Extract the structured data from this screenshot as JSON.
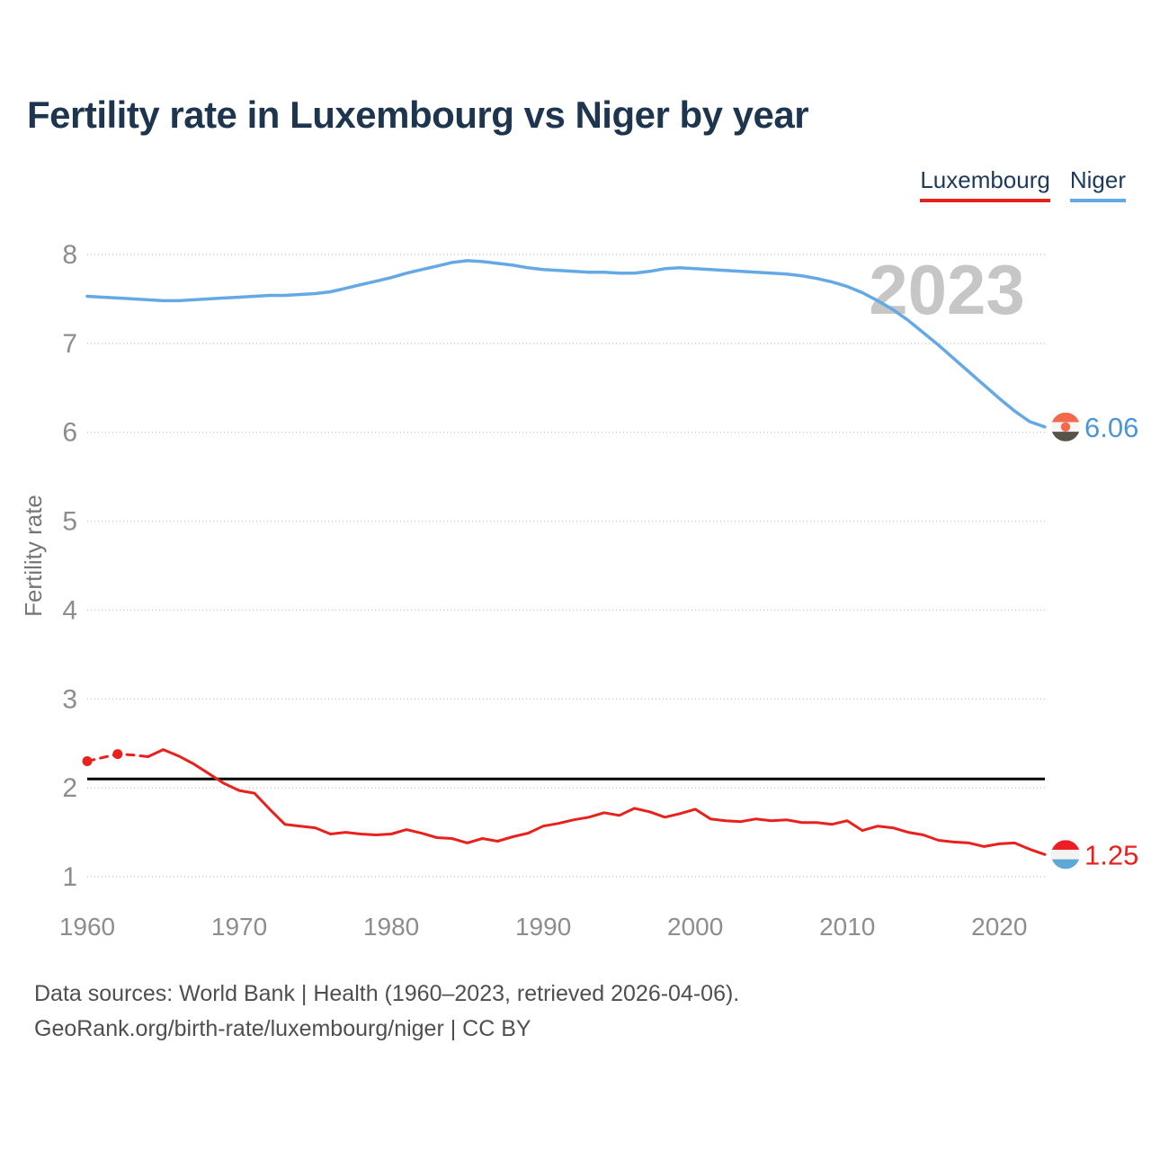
{
  "header": {
    "title": "Fertility rate in Luxembourg vs Niger by year"
  },
  "legend": {
    "items": [
      {
        "label": "Luxembourg",
        "color": "#e8211d"
      },
      {
        "label": "Niger",
        "color": "#64a9e6"
      }
    ]
  },
  "watermark": "2023",
  "footer": {
    "line1": "Data sources: World Bank | Health (1960–2023, retrieved 2026-04-06).",
    "line2": "GeoRank.org/birth-rate/luxembourg/niger | CC BY"
  },
  "chart_data": {
    "type": "line",
    "title": "Fertility rate in Luxembourg vs Niger by year",
    "xlabel": "",
    "ylabel": "Fertility rate",
    "xlim": [
      1960,
      2023
    ],
    "ylim": [
      1,
      8
    ],
    "x_ticks": [
      1960,
      1970,
      1980,
      1990,
      2000,
      2010,
      2020
    ],
    "y_ticks": [
      1,
      2,
      3,
      4,
      5,
      6,
      7,
      8
    ],
    "grid": true,
    "legend_position": "top-right",
    "reference_line": {
      "value": 2.1,
      "color": "#000000"
    },
    "x": [
      1960,
      1961,
      1962,
      1963,
      1964,
      1965,
      1966,
      1967,
      1968,
      1969,
      1970,
      1971,
      1972,
      1973,
      1974,
      1975,
      1976,
      1977,
      1978,
      1979,
      1980,
      1981,
      1982,
      1983,
      1984,
      1985,
      1986,
      1987,
      1988,
      1989,
      1990,
      1991,
      1992,
      1993,
      1994,
      1995,
      1996,
      1997,
      1998,
      1999,
      2000,
      2001,
      2002,
      2003,
      2004,
      2005,
      2006,
      2007,
      2008,
      2009,
      2010,
      2011,
      2012,
      2013,
      2014,
      2015,
      2016,
      2017,
      2018,
      2019,
      2020,
      2021,
      2022,
      2023
    ],
    "series": [
      {
        "name": "Niger",
        "color": "#64a9e6",
        "end_label": "6.06",
        "end_label_color": "#4b96db",
        "flag": {
          "stripes": [
            "#f2694c",
            "#f7f7f5",
            "#585349"
          ],
          "dot": "#f2694c"
        },
        "values": [
          7.53,
          7.52,
          7.51,
          7.5,
          7.49,
          7.48,
          7.48,
          7.49,
          7.5,
          7.51,
          7.52,
          7.53,
          7.54,
          7.54,
          7.55,
          7.56,
          7.58,
          7.62,
          7.66,
          7.7,
          7.74,
          7.79,
          7.83,
          7.87,
          7.91,
          7.93,
          7.92,
          7.9,
          7.88,
          7.85,
          7.83,
          7.82,
          7.81,
          7.8,
          7.8,
          7.79,
          7.79,
          7.81,
          7.84,
          7.85,
          7.84,
          7.83,
          7.82,
          7.81,
          7.8,
          7.79,
          7.78,
          7.76,
          7.73,
          7.69,
          7.64,
          7.57,
          7.48,
          7.38,
          7.26,
          7.12,
          6.98,
          6.83,
          6.68,
          6.53,
          6.38,
          6.24,
          6.12,
          6.06
        ]
      },
      {
        "name": "Luxembourg",
        "color": "#e8211d",
        "end_label": "1.25",
        "end_label_color": "#e8211d",
        "dashed_until_year": 1964,
        "marker_years": [
          1960,
          1962
        ],
        "flag": {
          "stripes": [
            "#ee1c25",
            "#f5f3f0",
            "#5ea8d8"
          ]
        },
        "values": [
          2.3,
          2.34,
          2.38,
          2.37,
          2.35,
          2.43,
          2.36,
          2.27,
          2.16,
          2.05,
          1.97,
          1.94,
          1.76,
          1.59,
          1.57,
          1.55,
          1.48,
          1.5,
          1.48,
          1.47,
          1.48,
          1.53,
          1.49,
          1.44,
          1.43,
          1.38,
          1.43,
          1.4,
          1.45,
          1.49,
          1.57,
          1.6,
          1.64,
          1.67,
          1.72,
          1.69,
          1.77,
          1.73,
          1.67,
          1.71,
          1.76,
          1.65,
          1.63,
          1.62,
          1.65,
          1.63,
          1.64,
          1.61,
          1.61,
          1.59,
          1.63,
          1.52,
          1.57,
          1.55,
          1.5,
          1.47,
          1.41,
          1.39,
          1.38,
          1.34,
          1.37,
          1.38,
          1.31,
          1.25
        ]
      }
    ]
  }
}
